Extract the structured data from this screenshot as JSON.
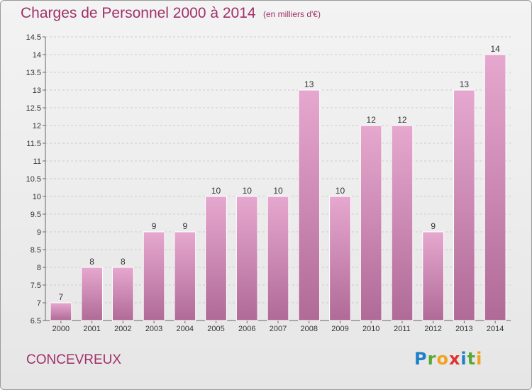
{
  "header": {
    "title": "Charges de Personnel 2000 à 2014",
    "unit": "(en milliers d'€)"
  },
  "footer": {
    "commune": "CONCEVREUX",
    "brand_letters": [
      {
        "char": "P",
        "color": "#1f7fc8"
      },
      {
        "char": "r",
        "color": "#58a838"
      },
      {
        "char": "o",
        "color": "#f2a21c"
      },
      {
        "char": "x",
        "color": "#e0312f"
      },
      {
        "char": "i",
        "color": "#1f7fc8"
      },
      {
        "char": "t",
        "color": "#58a838"
      },
      {
        "char": "i",
        "color": "#f2a21c"
      }
    ]
  },
  "colors": {
    "text_accent": "#a0306a",
    "bar_light": "#e6a8cf",
    "bar_dark": "#b06a97"
  },
  "chart_data": {
    "type": "bar",
    "title": "Charges de Personnel 2000 à 2014",
    "subtitle": "(en milliers d'€)",
    "xlabel": "",
    "ylabel": "",
    "categories": [
      "2000",
      "2001",
      "2002",
      "2003",
      "2004",
      "2005",
      "2006",
      "2007",
      "2008",
      "2009",
      "2010",
      "2011",
      "2012",
      "2013",
      "2014"
    ],
    "values": [
      7,
      8,
      8,
      9,
      9,
      10,
      10,
      10,
      13,
      10,
      12,
      12,
      9,
      13,
      14
    ],
    "value_labels": [
      "7",
      "8",
      "8",
      "9",
      "9",
      "10",
      "10",
      "10",
      "13",
      "10",
      "12",
      "12",
      "9",
      "13",
      "14"
    ],
    "ylim": [
      6.5,
      14.5
    ],
    "yticks": [
      6.5,
      7,
      7.5,
      8,
      8.5,
      9,
      9.5,
      10,
      10.5,
      11,
      11.5,
      12,
      12.5,
      13,
      13.5,
      14,
      14.5
    ],
    "ytick_labels": [
      "6.5",
      "7",
      "7.5",
      "8",
      "8.5",
      "9",
      "9.5",
      "10",
      "10.5",
      "11",
      "11.5",
      "12",
      "12.5",
      "13",
      "13.5",
      "14",
      "14.5"
    ],
    "grid": true
  }
}
